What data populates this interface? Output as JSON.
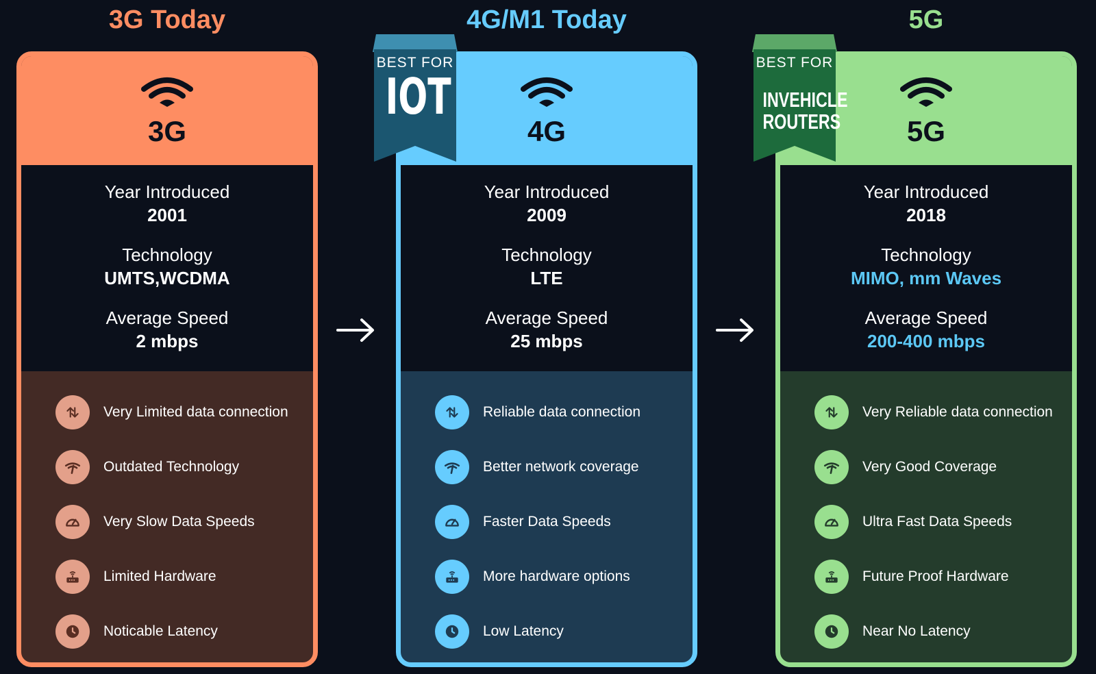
{
  "columns": [
    {
      "title": "3G Today",
      "accent": "#fe8d62",
      "features_bg": "#432a25",
      "icon_bg": "#e3a08a",
      "icon_fg": "#5a2e23",
      "gen": "3G",
      "stats": [
        {
          "label": "Year Introduced",
          "value": "2001"
        },
        {
          "label": "Technology",
          "value": "UMTS,WCDMA"
        },
        {
          "label": "Average Speed",
          "value": "2 mbps"
        }
      ],
      "features": [
        {
          "icon": "data-arrows-icon",
          "text": "Very Limited data connection"
        },
        {
          "icon": "signal-coverage-icon",
          "text": "Outdated Technology"
        },
        {
          "icon": "speedometer-icon",
          "text": "Very Slow Data Speeds"
        },
        {
          "icon": "router-icon",
          "text": "Limited Hardware"
        },
        {
          "icon": "clock-icon",
          "text": "Noticable Latency"
        }
      ]
    },
    {
      "title": "4G/M1 Today",
      "accent": "#66ccfe",
      "features_bg": "#1e3b52",
      "icon_bg": "#66ccfe",
      "icon_fg": "#1e3b52",
      "gen": "4G",
      "ribbon": {
        "top": "BEST FOR",
        "main": "IOT"
      },
      "stats": [
        {
          "label": "Year Introduced",
          "value": "2009"
        },
        {
          "label": "Technology",
          "value": "LTE"
        },
        {
          "label": "Average Speed",
          "value": "25 mbps"
        }
      ],
      "features": [
        {
          "icon": "data-arrows-icon",
          "text": "Reliable data connection"
        },
        {
          "icon": "signal-coverage-icon",
          "text": "Better network coverage"
        },
        {
          "icon": "speedometer-icon",
          "text": "Faster Data Speeds"
        },
        {
          "icon": "router-icon",
          "text": "More hardware options"
        },
        {
          "icon": "clock-icon",
          "text": "Low Latency"
        }
      ]
    },
    {
      "title": "5G",
      "accent": "#99df8f",
      "features_bg": "#243c2c",
      "icon_bg": "#99df8f",
      "icon_fg": "#243c2c",
      "gen": "5G",
      "highlight": "#5cc8f5",
      "ribbon": {
        "top": "BEST FOR",
        "main_lines": [
          "INVEHICLE",
          "ROUTERS"
        ]
      },
      "stats": [
        {
          "label": "Year Introduced",
          "value": "2018"
        },
        {
          "label": "Technology",
          "value": "MIMO, mm Waves"
        },
        {
          "label": "Average Speed",
          "value": "200-400 mbps"
        }
      ],
      "features": [
        {
          "icon": "data-arrows-icon",
          "text": "Very Reliable data connection"
        },
        {
          "icon": "signal-coverage-icon",
          "text": "Very Good Coverage"
        },
        {
          "icon": "speedometer-icon",
          "text": "Ultra Fast Data Speeds"
        },
        {
          "icon": "router-icon",
          "text": "Future Proof Hardware"
        },
        {
          "icon": "clock-icon",
          "text": "Near No Latency"
        }
      ]
    }
  ]
}
